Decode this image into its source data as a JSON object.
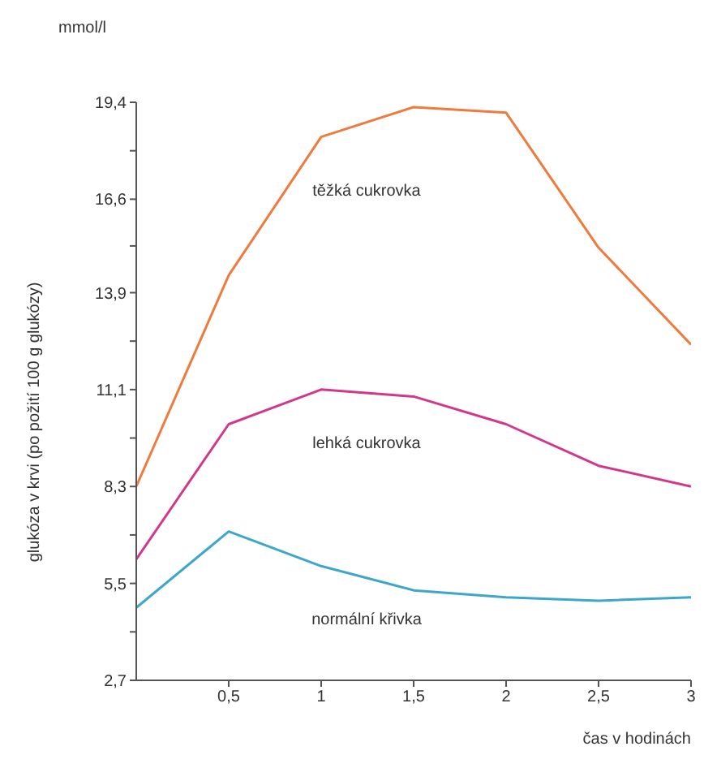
{
  "chart_data": {
    "type": "line",
    "xlabel": "čas v hodinách",
    "ylabel": "glukóza v krvi (po požití 100 g glukózy)",
    "annotations": [
      "mmol/l"
    ],
    "x": [
      0,
      0.5,
      1,
      1.5,
      2,
      2.5,
      3
    ],
    "series": [
      {
        "name": "těžká cukrovka",
        "color": "#f07a3c",
        "values": [
          8.3,
          14.4,
          18.4,
          19.26,
          19.1,
          15.2,
          12.4
        ]
      },
      {
        "name": "lehká cukrovka",
        "color": "#d2378c",
        "values": [
          6.2,
          10.1,
          11.1,
          10.9,
          10.1,
          8.9,
          8.3
        ]
      },
      {
        "name": "normální křivka",
        "color": "#3ea6cc",
        "values": [
          4.8,
          7.0,
          6.0,
          5.3,
          5.1,
          5.0,
          5.1
        ]
      }
    ],
    "xlim": [
      0,
      3
    ],
    "xticks": [
      {
        "value": 0.5,
        "label": "0,5"
      },
      1,
      {
        "value": 1.5,
        "label": "1,5"
      },
      2,
      {
        "value": 2.5,
        "label": "2,5"
      },
      3
    ],
    "ylim": [
      2.7,
      19.4
    ],
    "yticks": [
      {
        "value": 2.7,
        "label": "2,7"
      },
      {
        "value": 4.1,
        "label": null
      },
      {
        "value": 5.5,
        "label": "5,5"
      },
      {
        "value": 6.9,
        "label": null
      },
      {
        "value": 8.3,
        "label": "8,3"
      },
      {
        "value": 9.7,
        "label": null
      },
      {
        "value": 11.1,
        "label": "11,1"
      },
      {
        "value": 12.5,
        "label": null
      },
      {
        "value": 13.9,
        "label": "13,9"
      },
      {
        "value": 15.25,
        "label": null
      },
      {
        "value": 16.6,
        "label": "16,6"
      },
      {
        "value": 18.0,
        "label": null
      },
      {
        "value": 19.4,
        "label": "19,4"
      }
    ],
    "grid": false,
    "legend": false,
    "marker": "none",
    "line_style": "solid"
  }
}
